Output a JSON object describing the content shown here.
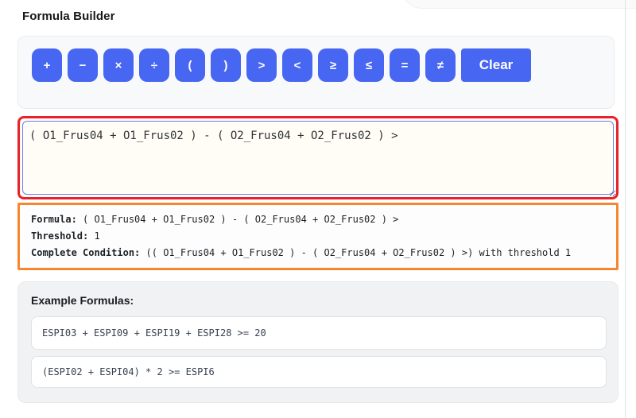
{
  "page": {
    "title": "Formula Builder"
  },
  "toolbar": {
    "operators": [
      "+",
      "−",
      "×",
      "÷",
      "(",
      ")",
      ">",
      "<",
      "≥",
      "≤",
      "=",
      "≠"
    ],
    "clear_label": "Clear"
  },
  "formula_input": {
    "value": "( O1_Frus04 + O1_Frus02 ) - ( O2_Frus04 + O2_Frus02 ) >"
  },
  "summary": {
    "formula_label": "Formula:",
    "formula_value": "( O1_Frus04 + O1_Frus02 ) - ( O2_Frus04 + O2_Frus02 ) >",
    "threshold_label": "Threshold:",
    "threshold_value": "1",
    "condition_label": "Complete Condition:",
    "condition_value": "(( O1_Frus04 + O1_Frus02 ) - ( O2_Frus04 + O2_Frus02 ) >) with threshold 1"
  },
  "examples": {
    "heading": "Example Formulas:",
    "items": [
      "ESPI03 + ESPI09 + ESPI19 + ESPI28 >= 20",
      "(ESPI02 + ESPI04) * 2 >= ESPI6"
    ]
  },
  "colors": {
    "accent_blue": "#4766f1",
    "alert_red_border": "#e8212a",
    "summary_orange_border": "#f7862e",
    "toolbar_bg": "#f8f9fa",
    "examples_bg": "#f0f2f3",
    "textarea_bg": "#fffdf6"
  }
}
